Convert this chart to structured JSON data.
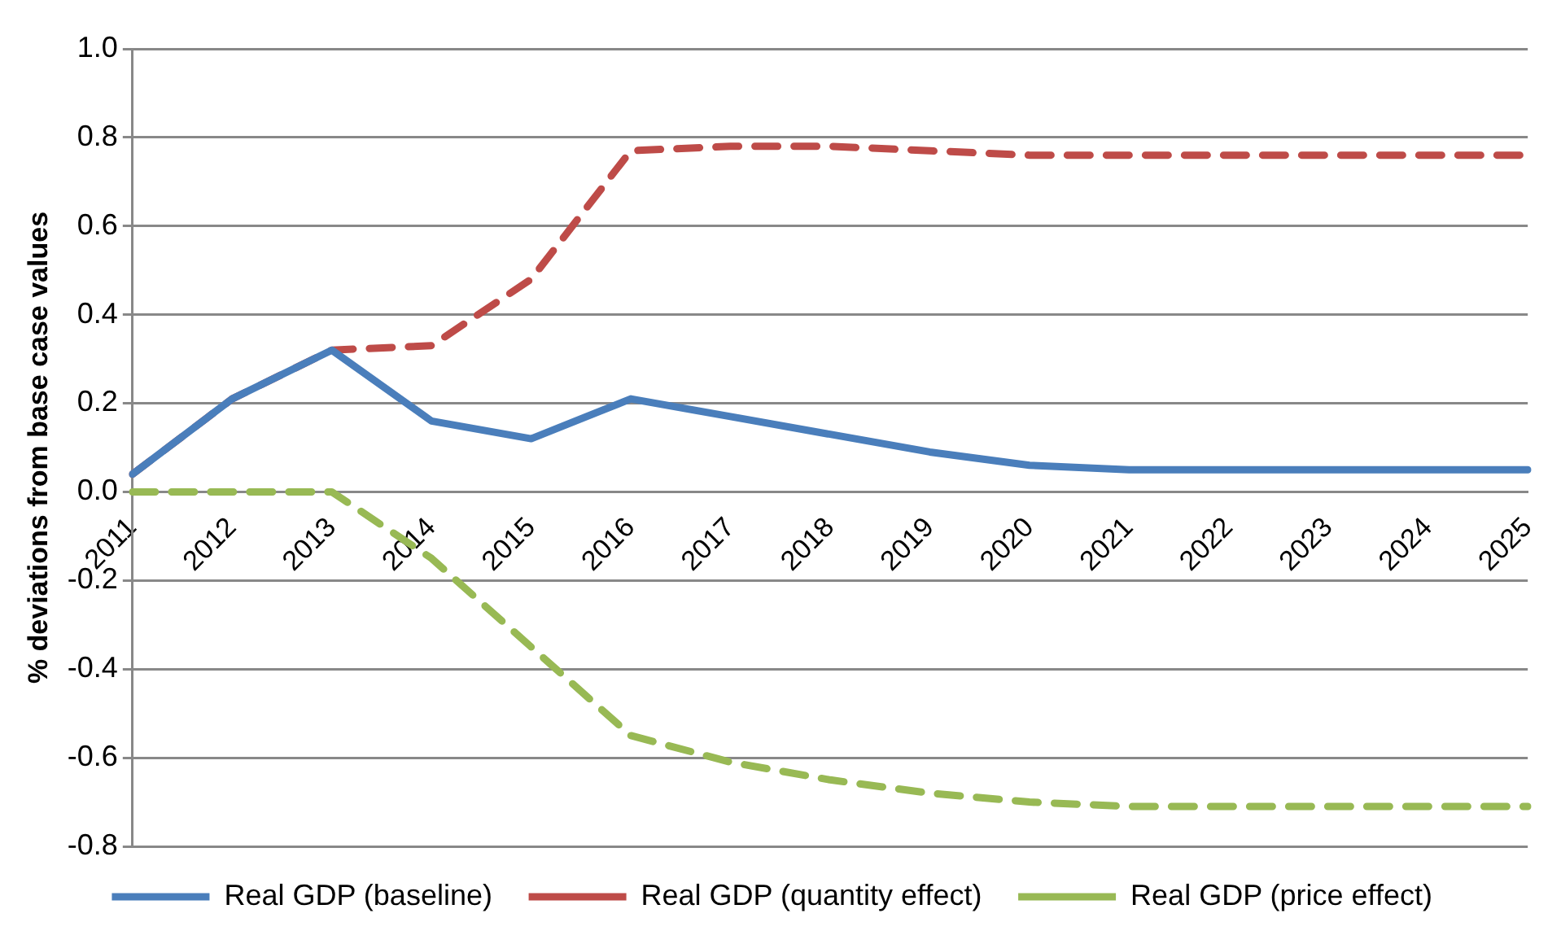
{
  "chart_data": {
    "type": "line",
    "ylabel": "% deviations from base case values",
    "categories": [
      "2011",
      "2012",
      "2013",
      "2014",
      "2015",
      "2016",
      "2017",
      "2018",
      "2019",
      "2020",
      "2021",
      "2022",
      "2023",
      "2024",
      "2025"
    ],
    "series": [
      {
        "name": "Real GDP (baseline)",
        "color": "#4a7ebb",
        "line_style": "solid",
        "values": [
          0.04,
          0.21,
          0.32,
          0.16,
          0.12,
          0.21,
          0.17,
          0.13,
          0.09,
          0.06,
          0.05,
          0.05,
          0.05,
          0.05,
          0.05
        ]
      },
      {
        "name": "Real GDP (quantity effect)",
        "color": "#be4b48",
        "line_style": "dashed",
        "values": [
          0.04,
          0.21,
          0.32,
          0.33,
          0.48,
          0.77,
          0.78,
          0.78,
          0.77,
          0.76,
          0.76,
          0.76,
          0.76,
          0.76,
          0.76
        ]
      },
      {
        "name": "Real GDP (price effect)",
        "color": "#98b954",
        "line_style": "dashed",
        "values": [
          0,
          0,
          0,
          -0.15,
          -0.35,
          -0.55,
          -0.61,
          -0.65,
          -0.68,
          -0.7,
          -0.71,
          -0.71,
          -0.71,
          -0.71,
          -0.71
        ]
      }
    ],
    "ylim": [
      -0.8,
      1.0
    ],
    "yticks": [
      -0.8,
      -0.6,
      -0.4,
      -0.2,
      {
        "value": 0,
        "label": "0.0"
      },
      0.2,
      0.4,
      0.6,
      0.8,
      {
        "value": 1,
        "label": "1.0"
      }
    ],
    "grid": "y",
    "legend": "bottom",
    "marker": "none"
  }
}
